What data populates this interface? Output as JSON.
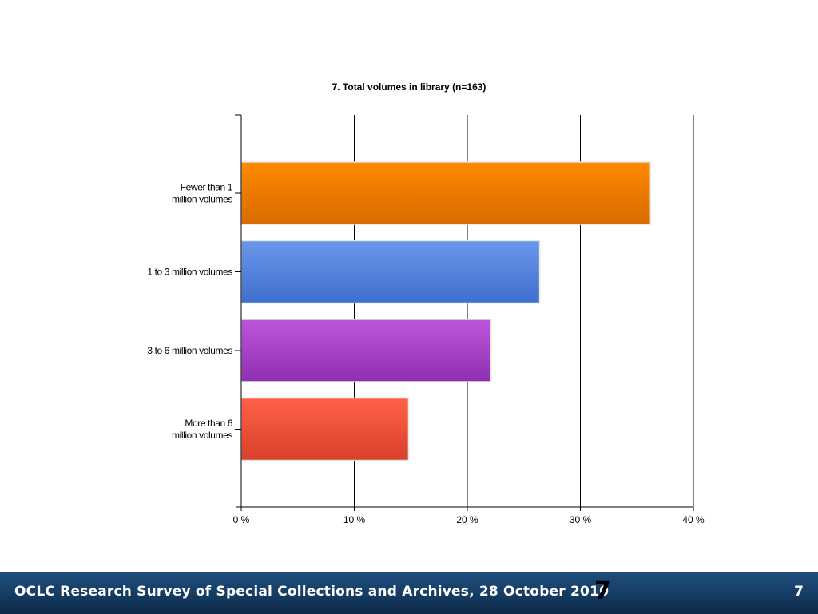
{
  "chart_data": {
    "type": "bar",
    "orientation": "horizontal",
    "title": "7. Total volumes in library (n=163)",
    "categories": [
      [
        "Fewer than 1",
        "million volumes"
      ],
      [
        "1 to 3 million volumes"
      ],
      [
        "3 to 6 million volumes"
      ],
      [
        "More than 6",
        "million volumes"
      ]
    ],
    "values": [
      36.2,
      26.4,
      22.1,
      14.8
    ],
    "colors": [
      [
        "#ff8a00",
        "#d96a00"
      ],
      [
        "#6b97ea",
        "#3f6fcf"
      ],
      [
        "#be55dc",
        "#8f2fb1"
      ],
      [
        "#ff6148",
        "#d8402a"
      ]
    ],
    "xlim": [
      0,
      40
    ],
    "xticks": [
      0,
      10,
      20,
      30,
      40
    ],
    "xtick_labels": [
      "0 %",
      "10 %",
      "20 %",
      "30 %",
      "40 %"
    ],
    "xlabel": "",
    "ylabel": "",
    "grid": true,
    "legend": "none"
  },
  "footer": {
    "title": "OCLC Research Survey of Special Collections and Archives, 28 October 2010",
    "logo_number": "7",
    "page_number": "7"
  }
}
